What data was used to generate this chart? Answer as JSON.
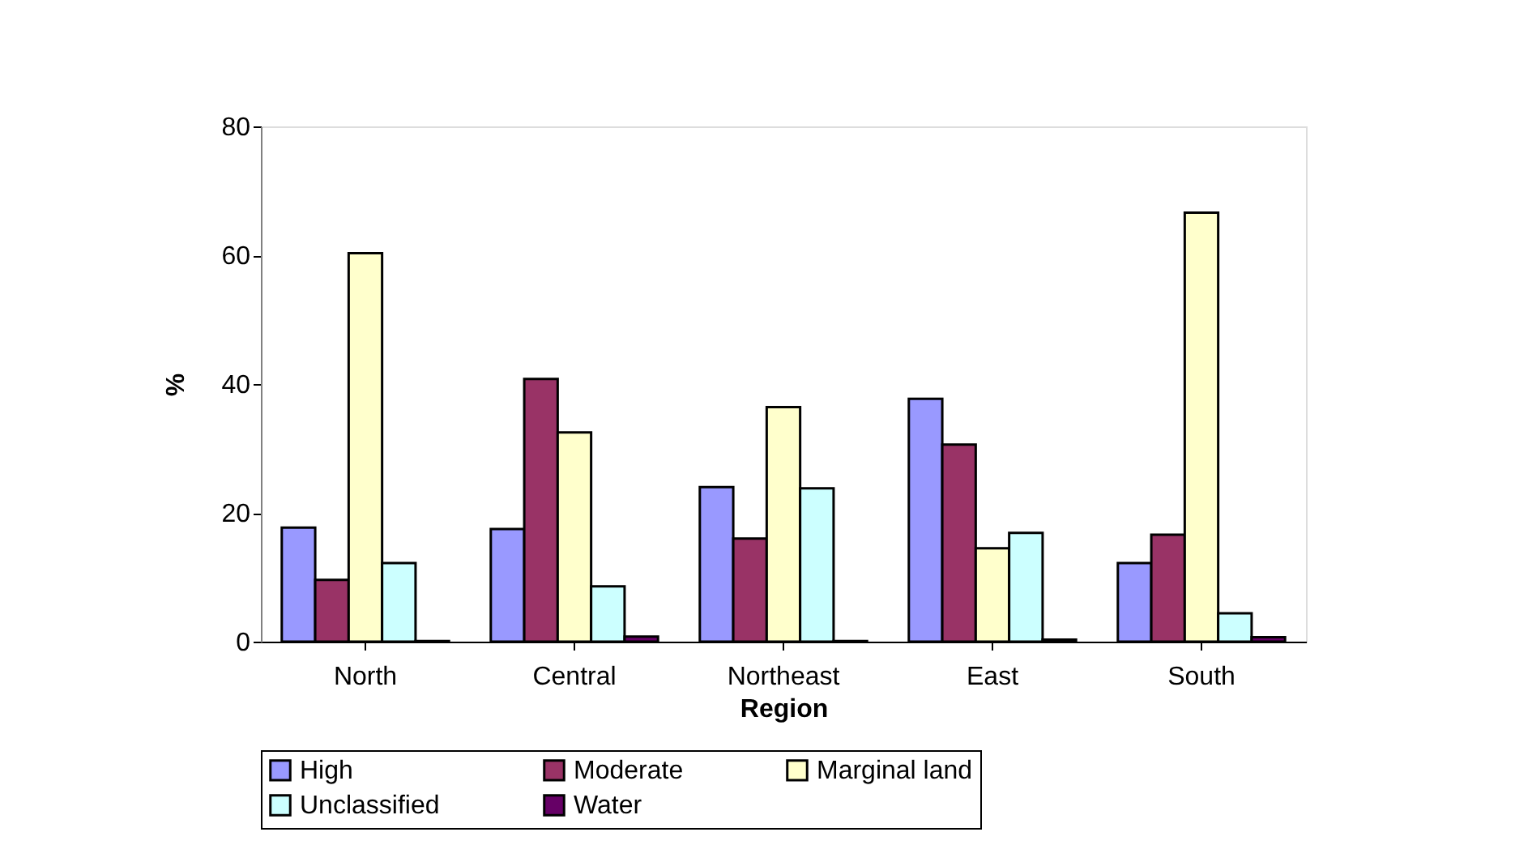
{
  "chart_data": {
    "type": "bar",
    "xlabel": "Region",
    "ylabel": "%",
    "categories": [
      "North",
      "Central",
      "Northeast",
      "East",
      "South"
    ],
    "series": [
      {
        "name": "High",
        "color": "#9999ff",
        "values": [
          17.7,
          17.5,
          24.0,
          37.7,
          12.2
        ]
      },
      {
        "name": "Moderate",
        "color": "#993366",
        "values": [
          9.6,
          40.8,
          16.0,
          30.6,
          16.6
        ]
      },
      {
        "name": "Marginal land",
        "color": "#ffffcc",
        "values": [
          60.3,
          32.5,
          36.4,
          14.5,
          66.6
        ]
      },
      {
        "name": "Unclassified",
        "color": "#ccffff",
        "values": [
          12.2,
          8.6,
          23.8,
          16.9,
          4.4
        ]
      },
      {
        "name": "Water",
        "color": "#660066",
        "values": [
          0.1,
          0.8,
          0.1,
          0.3,
          0.7
        ]
      }
    ],
    "ylim": [
      0,
      80
    ],
    "yticks": [
      0,
      20,
      40,
      60,
      80
    ],
    "grid": false,
    "legend": "bottom"
  }
}
